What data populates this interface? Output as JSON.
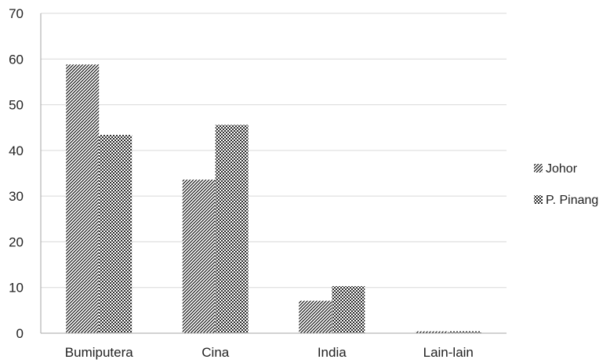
{
  "chart_data": {
    "type": "bar",
    "categories": [
      "Bumiputera",
      "Cina",
      "India",
      "Lain-lain"
    ],
    "series": [
      {
        "name": "Johor",
        "values": [
          58.8,
          33.6,
          7.1,
          0.4
        ],
        "pattern": "diagonal-hatch"
      },
      {
        "name": "P. Pinang",
        "values": [
          43.4,
          45.6,
          10.3,
          0.4
        ],
        "pattern": "dots"
      }
    ],
    "ylim": [
      0,
      70
    ],
    "yticks": [
      "0",
      "10",
      "20",
      "30",
      "40",
      "50",
      "60",
      "70"
    ],
    "grid": true,
    "legend": "right",
    "colors": {
      "ink": "#000000",
      "grid": "#d9d9d9",
      "axis": "#a6a6a6"
    }
  }
}
